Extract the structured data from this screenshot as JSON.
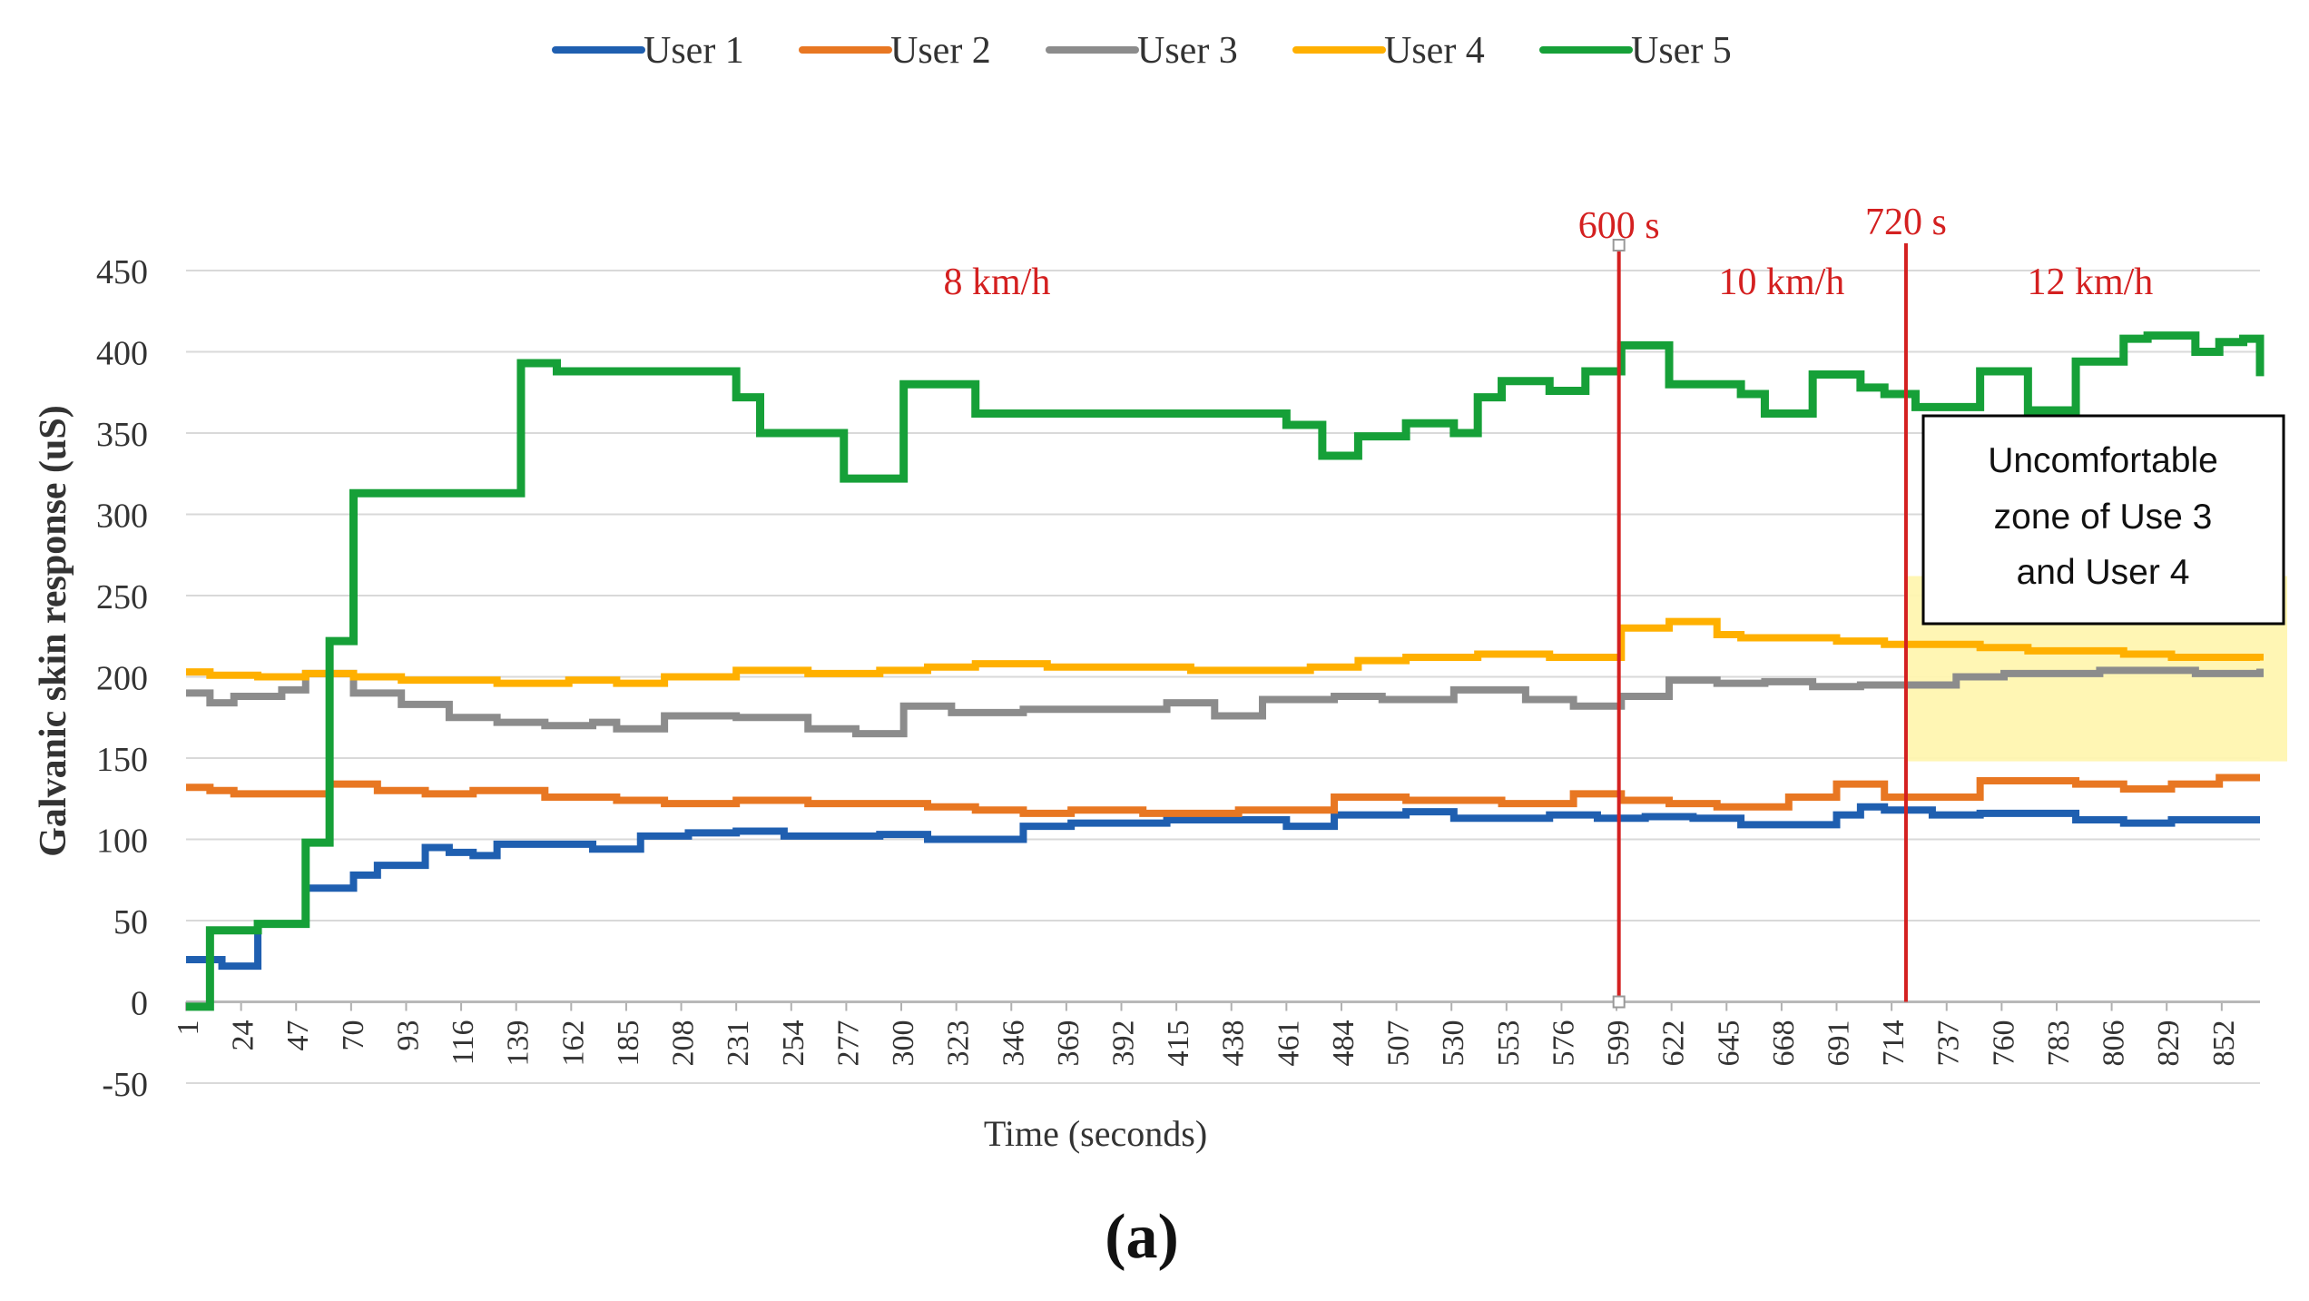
{
  "chart_data": {
    "type": "line",
    "title": "",
    "xlabel": "Time (seconds)",
    "ylabel": "Galvanic skin response (uS)",
    "ylim": [
      -50,
      450
    ],
    "yticks": [
      -50,
      0,
      50,
      100,
      150,
      200,
      250,
      300,
      350,
      400,
      450
    ],
    "xlim": [
      1,
      868
    ],
    "xticks": [
      1,
      24,
      47,
      70,
      93,
      116,
      139,
      162,
      185,
      208,
      231,
      254,
      277,
      300,
      323,
      346,
      369,
      392,
      415,
      438,
      461,
      484,
      507,
      530,
      553,
      576,
      599,
      622,
      645,
      668,
      691,
      714,
      737,
      760,
      783,
      806,
      829,
      852
    ],
    "grid": true,
    "legend_position": "top-center",
    "series": [
      {
        "name": "User 1",
        "color": "#1f5fb0",
        "x": [
          1,
          16,
          31,
          51,
          61,
          71,
          81,
          91,
          101,
          111,
          121,
          131,
          141,
          156,
          171,
          191,
          211,
          231,
          251,
          271,
          291,
          311,
          331,
          351,
          371,
          391,
          411,
          431,
          451,
          461,
          481,
          511,
          531,
          551,
          571,
          591,
          611,
          631,
          651,
          671,
          691,
          701,
          711,
          731,
          751,
          771,
          791,
          811,
          831,
          851,
          868
        ],
        "y": [
          26,
          22,
          48,
          70,
          70,
          78,
          84,
          84,
          95,
          92,
          90,
          97,
          97,
          97,
          94,
          102,
          104,
          105,
          102,
          102,
          103,
          100,
          100,
          108,
          110,
          110,
          112,
          112,
          112,
          108,
          115,
          117,
          113,
          113,
          115,
          113,
          114,
          113,
          109,
          109,
          115,
          120,
          118,
          115,
          116,
          116,
          112,
          110,
          112,
          112,
          112
        ]
      },
      {
        "name": "User 2",
        "color": "#e87722",
        "x": [
          1,
          11,
          21,
          41,
          61,
          81,
          101,
          121,
          151,
          181,
          201,
          231,
          261,
          291,
          311,
          331,
          351,
          371,
          401,
          421,
          441,
          461,
          481,
          511,
          551,
          581,
          601,
          621,
          641,
          671,
          691,
          711,
          731,
          751,
          771,
          791,
          811,
          831,
          851,
          868
        ],
        "y": [
          132,
          130,
          128,
          128,
          134,
          130,
          128,
          130,
          126,
          124,
          122,
          124,
          122,
          122,
          120,
          118,
          116,
          118,
          116,
          116,
          118,
          118,
          126,
          124,
          122,
          128,
          124,
          122,
          120,
          126,
          134,
          126,
          126,
          136,
          136,
          134,
          131,
          134,
          138,
          138
        ]
      },
      {
        "name": "User 3",
        "color": "#8c8c8c",
        "x": [
          1,
          11,
          21,
          41,
          51,
          71,
          91,
          111,
          131,
          151,
          171,
          181,
          201,
          231,
          261,
          281,
          301,
          321,
          351,
          381,
          411,
          431,
          451,
          481,
          501,
          531,
          561,
          581,
          601,
          621,
          641,
          661,
          681,
          701,
          721,
          741,
          761,
          781,
          801,
          821,
          841,
          868
        ],
        "y": [
          190,
          184,
          188,
          192,
          202,
          190,
          183,
          175,
          172,
          170,
          172,
          168,
          176,
          175,
          168,
          165,
          182,
          178,
          180,
          180,
          184,
          176,
          186,
          188,
          186,
          192,
          186,
          182,
          188,
          198,
          196,
          197,
          194,
          195,
          195,
          200,
          202,
          202,
          204,
          204,
          202,
          205
        ]
      },
      {
        "name": "User 4",
        "color": "#ffb000",
        "x": [
          1,
          11,
          31,
          51,
          71,
          91,
          111,
          131,
          161,
          181,
          201,
          231,
          261,
          291,
          311,
          331,
          361,
          391,
          421,
          451,
          471,
          491,
          511,
          541,
          571,
          601,
          621,
          641,
          651,
          671,
          691,
          711,
          731,
          751,
          771,
          791,
          811,
          831,
          851,
          868
        ],
        "y": [
          203,
          201,
          200,
          202,
          200,
          198,
          198,
          196,
          198,
          196,
          200,
          204,
          202,
          204,
          206,
          208,
          206,
          206,
          204,
          204,
          206,
          210,
          212,
          214,
          212,
          230,
          234,
          226,
          224,
          224,
          222,
          220,
          220,
          218,
          216,
          216,
          214,
          212,
          212,
          210
        ]
      },
      {
        "name": "User 5",
        "color": "#16a038",
        "x": [
          1,
          11,
          31,
          51,
          61,
          71,
          81,
          131,
          141,
          156,
          226,
          231,
          241,
          271,
          276,
          301,
          321,
          331,
          461,
          476,
          491,
          511,
          531,
          541,
          551,
          571,
          586,
          601,
          621,
          651,
          661,
          681,
          701,
          711,
          724,
          751,
          771,
          791,
          811,
          821,
          841,
          851,
          861,
          868
        ],
        "y": [
          -3,
          44,
          48,
          98,
          222,
          313,
          313,
          313,
          393,
          388,
          388,
          372,
          350,
          350,
          322,
          380,
          380,
          362,
          355,
          336,
          348,
          356,
          350,
          372,
          382,
          376,
          388,
          404,
          380,
          374,
          362,
          386,
          378,
          374,
          366,
          388,
          364,
          394,
          408,
          410,
          400,
          406,
          408,
          385
        ]
      }
    ],
    "vertical_markers": [
      {
        "x": 600,
        "label": "600 s",
        "color": "#d42020"
      },
      {
        "x": 720,
        "label": "720 s",
        "color": "#d42020"
      }
    ],
    "speed_labels": [
      {
        "text": "8 km/h",
        "x": 340,
        "color": "#d42020"
      },
      {
        "text": "10 km/h",
        "x": 668,
        "color": "#d42020"
      },
      {
        "text": "12 km/h",
        "x": 797,
        "color": "#d42020"
      }
    ],
    "highlight_zone": {
      "x_start": 720,
      "x_end": 868,
      "y_start": 148,
      "y_end": 262,
      "color": "#fff6b0"
    },
    "annotation_text": {
      "line1": "Uncomfortable",
      "line2": "zone of  Use 3",
      "line3": "and User 4"
    },
    "caption": "(a)"
  }
}
